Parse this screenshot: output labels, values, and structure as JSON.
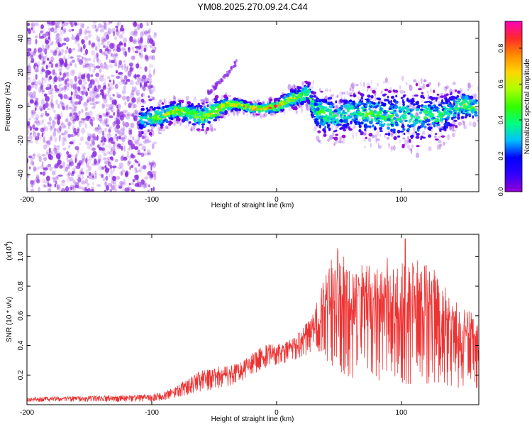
{
  "title": "YM08.2025.270.09.24.C44",
  "colors": {
    "snr_line": "#ee3333",
    "spectrogram_scatter": "#8a2be2",
    "axis": "#000000"
  },
  "colorbar": {
    "label": "Normalized spectral amplitude",
    "range": [
      0.0,
      0.95
    ],
    "ticks": [
      "0.0",
      "0.2",
      "0.4",
      "0.6",
      "0.8"
    ],
    "tick_values": [
      0.0,
      0.2,
      0.4,
      0.6,
      0.8
    ],
    "stops": [
      "#9400d3",
      "#3300ff",
      "#0000ff",
      "#00bfff",
      "#00ff7f",
      "#33ff00",
      "#aaff00",
      "#ffd700",
      "#ff8c00",
      "#ff2a2a",
      "#ff00bb"
    ]
  },
  "chart_data": [
    {
      "type": "heatmap",
      "name": "spectrogram",
      "title": "YM08.2025.270.09.24.C44",
      "xlabel": "Height of straight line (km)",
      "ylabel": "Frequency (Hz)",
      "xlim": [
        -200,
        162
      ],
      "ylim": [
        -50,
        50
      ],
      "x_ticks": [
        -200,
        -100,
        0,
        100
      ],
      "x_tick_labels": [
        "-200",
        "-100",
        "0",
        "100"
      ],
      "y_ticks": [
        -40,
        -20,
        0,
        20,
        40
      ],
      "y_tick_labels": [
        "-40",
        "-20",
        "0",
        "20",
        "40"
      ],
      "ridge": {
        "x": [
          -110,
          -100,
          -90,
          -80,
          -70,
          -60,
          -50,
          -40,
          -30,
          -20,
          -10,
          0,
          10,
          20,
          25,
          30,
          40,
          50,
          60,
          70,
          80,
          90,
          100,
          110,
          120,
          130,
          140,
          150,
          160
        ],
        "y": [
          -8,
          -7,
          -5,
          -2,
          -4,
          -6,
          -3,
          1,
          1,
          -1,
          -1,
          0,
          4,
          6,
          9,
          -2,
          -5,
          -6,
          -3,
          -5,
          -4,
          -6,
          -5,
          -7,
          -5,
          -6,
          -2,
          1,
          -1
        ],
        "amp": [
          0.35,
          0.5,
          0.62,
          0.72,
          0.6,
          0.62,
          0.7,
          0.82,
          0.9,
          0.88,
          0.8,
          0.85,
          0.65,
          0.55,
          0.5,
          0.45,
          0.5,
          0.45,
          0.45,
          0.5,
          0.5,
          0.45,
          0.45,
          0.4,
          0.45,
          0.45,
          0.4,
          0.6,
          0.5
        ],
        "spread": [
          8,
          8,
          6,
          5,
          6,
          7,
          7,
          4,
          3,
          3,
          3,
          4,
          5,
          6,
          6,
          10,
          12,
          10,
          10,
          12,
          12,
          14,
          14,
          14,
          14,
          12,
          10,
          8,
          8
        ]
      },
      "branch": {
        "x": [
          -55,
          -47,
          -38,
          -32
        ],
        "y": [
          8,
          13,
          20,
          26
        ]
      },
      "noise_region_x": [
        -200,
        -97
      ]
    },
    {
      "type": "line",
      "name": "snr",
      "xlabel": "Height of straight line (km)",
      "ylabel": "SNR (10 * v/v)",
      "scale_label": "(x10",
      "scale_exponent": "4",
      "xlim": [
        -200,
        162
      ],
      "ylim": [
        0.0,
        1.15
      ],
      "x_ticks": [
        -200,
        -100,
        0,
        100
      ],
      "x_tick_labels": [
        "-200",
        "-100",
        "0",
        "100"
      ],
      "y_ticks": [
        0.2,
        0.4,
        0.6,
        0.8,
        1.0
      ],
      "y_tick_labels": [
        "0.2",
        "0.4",
        "0.6",
        "0.8",
        "1.0"
      ],
      "envelope": {
        "x": [
          -200,
          -150,
          -100,
          -90,
          -80,
          -70,
          -60,
          -50,
          -40,
          -30,
          -20,
          -10,
          0,
          10,
          20,
          30,
          40,
          50,
          60,
          70,
          80,
          90,
          100,
          110,
          120,
          130,
          140,
          150,
          162
        ],
        "base": [
          0.02,
          0.02,
          0.02,
          0.03,
          0.05,
          0.07,
          0.09,
          0.1,
          0.12,
          0.15,
          0.2,
          0.24,
          0.27,
          0.29,
          0.32,
          0.36,
          0.3,
          0.22,
          0.18,
          0.18,
          0.16,
          0.15,
          0.14,
          0.14,
          0.14,
          0.15,
          0.12,
          0.1,
          0.08
        ],
        "peak": [
          0.05,
          0.06,
          0.07,
          0.09,
          0.14,
          0.18,
          0.24,
          0.26,
          0.26,
          0.28,
          0.35,
          0.4,
          0.42,
          0.44,
          0.52,
          0.62,
          0.95,
          1.08,
          0.92,
          0.95,
          0.98,
          1.0,
          0.95,
          1.0,
          1.05,
          0.85,
          0.75,
          0.65,
          0.62
        ]
      },
      "max_value": 1.12
    }
  ]
}
